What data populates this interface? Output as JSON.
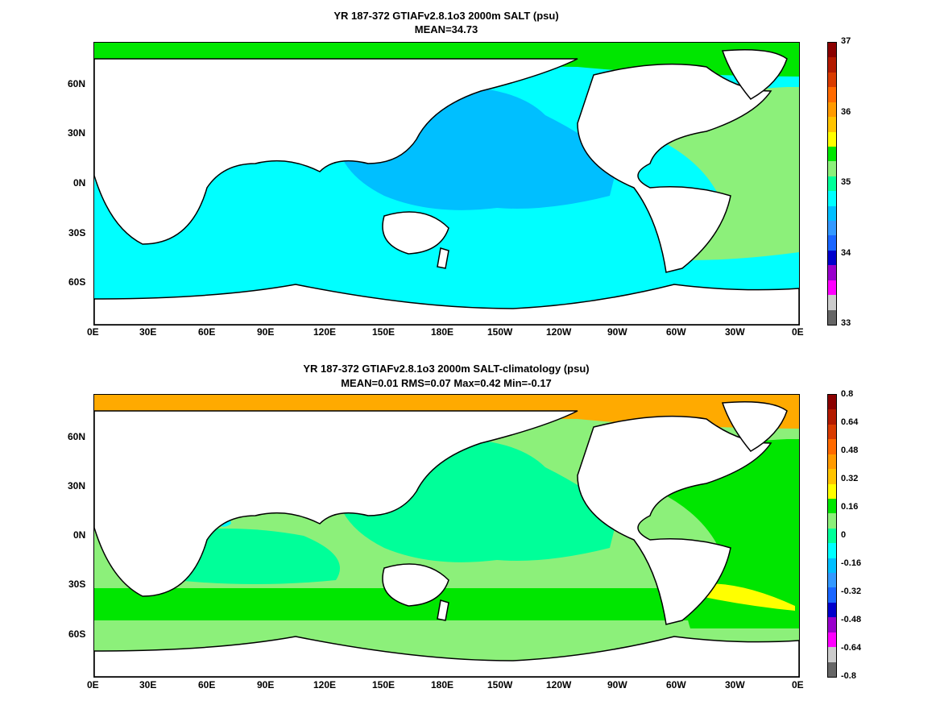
{
  "panels": [
    {
      "title": "YR 187-372 GTIAFv2.8.1o3 2000m SALT (psu)",
      "subtitle": "MEAN=34.73",
      "x_ticks": [
        "0E",
        "30E",
        "60E",
        "90E",
        "120E",
        "150E",
        "180E",
        "150W",
        "120W",
        "90W",
        "60W",
        "30W",
        "0E"
      ],
      "y_ticks": [
        "60N",
        "30N",
        "0N",
        "30S",
        "60S"
      ],
      "colorbar": {
        "labels": [
          "37",
          "36",
          "35",
          "34",
          "33"
        ],
        "colors": [
          "#8b0000",
          "#b31a00",
          "#d93b00",
          "#ff6a00",
          "#ff9a00",
          "#ffc400",
          "#ffff00",
          "#00e600",
          "#8cf07a",
          "#00ff99",
          "#00ffff",
          "#00bfff",
          "#3399ff",
          "#1a66ff",
          "#0000cc",
          "#9900cc",
          "#ff00ff",
          "#cccccc",
          "#666666"
        ],
        "legend": {
          "bg": "#00e600",
          "n_pacific": "#00bfff",
          "s_pacific": "#00ffff",
          "atlantic": "#8cf07a",
          "arctic": "#00e600"
        }
      }
    },
    {
      "title": "YR 187-372 GTIAFv2.8.1o3 2000m SALT-climatology (psu)",
      "subtitle": "MEAN=0.01   RMS=0.07   Max=0.42   Min=-0.17",
      "x_ticks": [
        "0E",
        "30E",
        "60E",
        "90E",
        "120E",
        "150E",
        "180E",
        "150W",
        "120W",
        "90W",
        "60W",
        "30W",
        "0E"
      ],
      "y_ticks": [
        "60N",
        "30N",
        "0N",
        "30S",
        "60S"
      ],
      "colorbar": {
        "labels": [
          "0.8",
          "0.64",
          "0.48",
          "0.32",
          "0.16",
          "0",
          "-0.16",
          "-0.32",
          "-0.48",
          "-0.64",
          "-0.8"
        ],
        "colors": [
          "#8b0000",
          "#b31a00",
          "#d93b00",
          "#ff6a00",
          "#ff9a00",
          "#ffc400",
          "#ffff00",
          "#00e600",
          "#8cf07a",
          "#00ff99",
          "#00ffff",
          "#00bfff",
          "#3399ff",
          "#1a66ff",
          "#0000cc",
          "#9900cc",
          "#ff00ff",
          "#cccccc",
          "#666666"
        ],
        "legend": {
          "bg": "#8cf07a",
          "n_pacific": "#00ff99",
          "s_pacific": "#00ff99",
          "atlantic": "#00e600",
          "arctic": "#ffaa00"
        }
      }
    }
  ]
}
